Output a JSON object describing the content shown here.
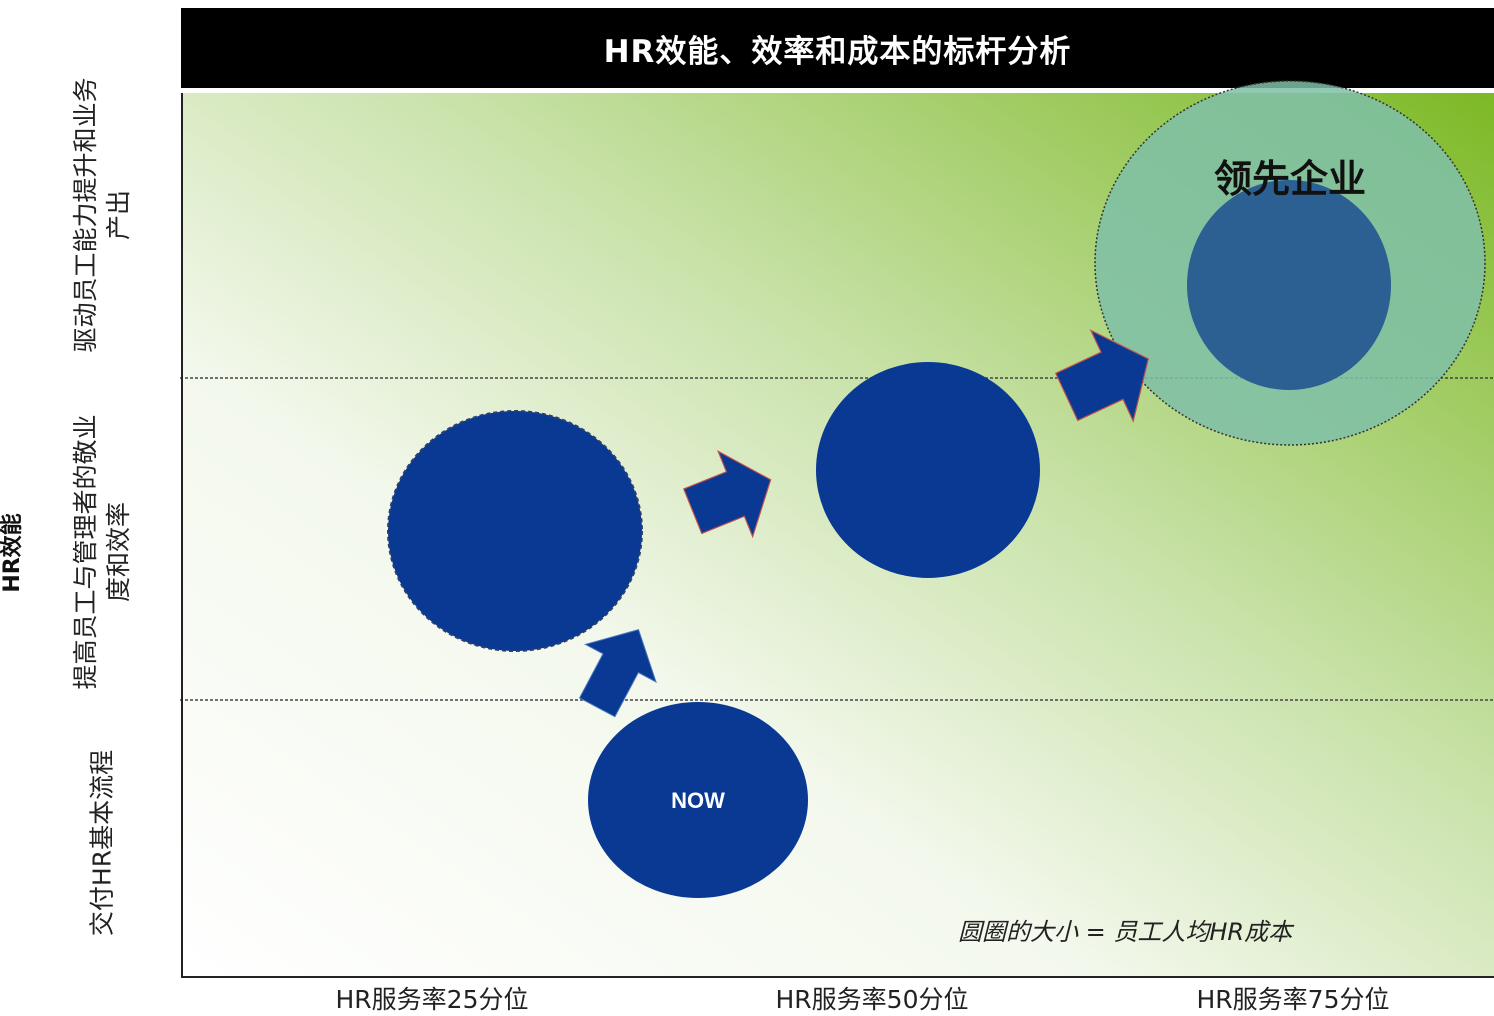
{
  "title": "HR效能、效率和成本的标杆分析",
  "y_axis_title": "HR效能",
  "y_levels": [
    "驱动员工能力提升和业务产出",
    "提高员工与管理者的敬业度和效率",
    "交付HR基本流程"
  ],
  "x_levels": [
    "HR服务率25分位",
    "HR服务率50分位",
    "HR服务率75分位"
  ],
  "now_label": "NOW",
  "leader_label": "领先企业",
  "note": "圆圈的大小 = 员工人均HR成本",
  "colors": {
    "circle_fill": "#0a3993",
    "gradient_dark": "#7db926",
    "gradient_light": "#ffffff",
    "leader_halo": "#7fbfa8",
    "banner": "#000000"
  }
}
